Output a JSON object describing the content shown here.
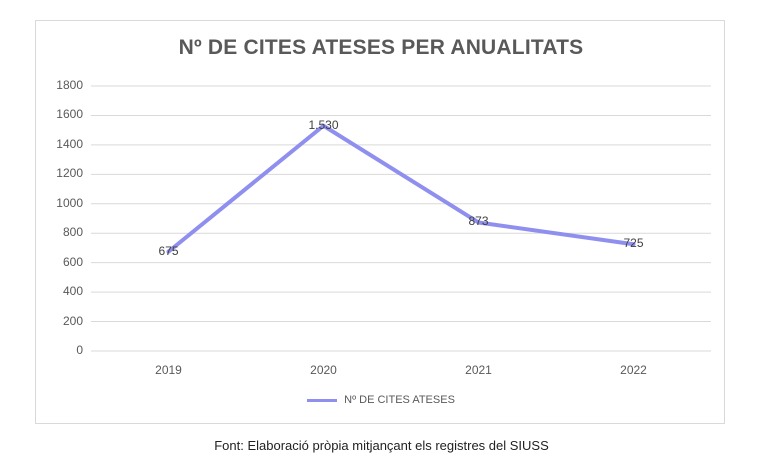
{
  "chart_data": {
    "type": "line",
    "title": "Nº DE CITES ATESES PER ANUALITATS",
    "categories": [
      "2019",
      "2020",
      "2021",
      "2022"
    ],
    "series": [
      {
        "name": "Nº DE CITES ATESES",
        "values": [
          675,
          1530,
          873,
          725
        ],
        "labels": [
          "675",
          "1.530",
          "873",
          "725"
        ]
      }
    ],
    "yticks": [
      "0",
      "200",
      "400",
      "600",
      "800",
      "1000",
      "1200",
      "1400",
      "1600",
      "1800"
    ],
    "ylim": [
      0,
      1800
    ],
    "xlabel": "",
    "ylabel": "",
    "grid": true,
    "legend": "bottom",
    "line_color": "#8f8ff0"
  },
  "caption": "Font: Elaboració pròpia mitjançant els registres del SIUSS"
}
